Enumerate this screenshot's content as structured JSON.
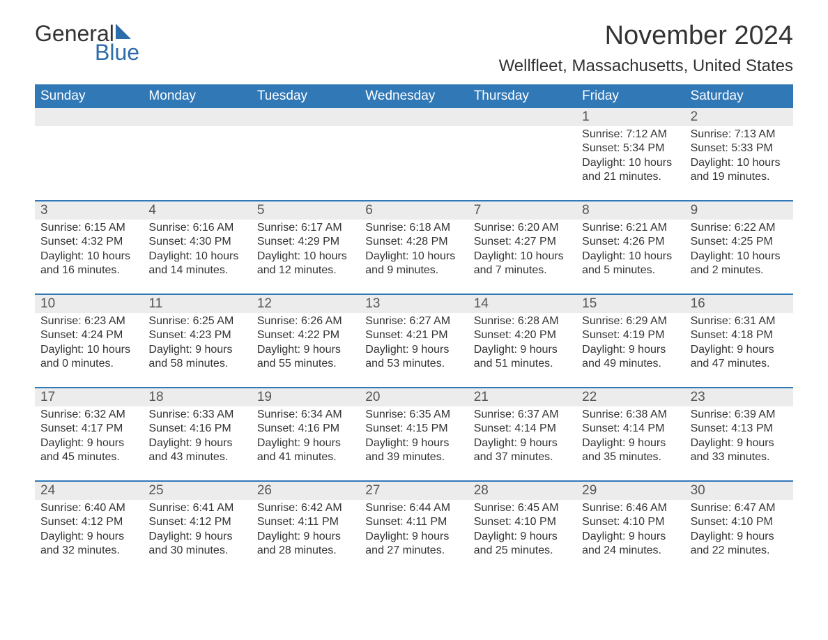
{
  "colors": {
    "header_bg": "#3178b7",
    "header_text": "#ffffff",
    "daynum_bg": "#ececec",
    "rule": "#3178b7",
    "body_text": "#333333",
    "logo_blue": "#2c6ca9",
    "background": "#ffffff"
  },
  "typography": {
    "month_title_size": 38,
    "location_size": 24,
    "weekday_size": 19,
    "daynum_size": 19,
    "detail_size": 16,
    "font_family": "Arial"
  },
  "logo": {
    "word1": "General",
    "word2": "Blue"
  },
  "title": {
    "month": "November 2024",
    "location": "Wellfleet, Massachusetts, United States"
  },
  "weekdays": [
    "Sunday",
    "Monday",
    "Tuesday",
    "Wednesday",
    "Thursday",
    "Friday",
    "Saturday"
  ],
  "weeks": [
    [
      null,
      null,
      null,
      null,
      null,
      {
        "day": "1",
        "sunrise": "Sunrise: 7:12 AM",
        "sunset": "Sunset: 5:34 PM",
        "daylight1": "Daylight: 10 hours",
        "daylight2": "and 21 minutes."
      },
      {
        "day": "2",
        "sunrise": "Sunrise: 7:13 AM",
        "sunset": "Sunset: 5:33 PM",
        "daylight1": "Daylight: 10 hours",
        "daylight2": "and 19 minutes."
      }
    ],
    [
      {
        "day": "3",
        "sunrise": "Sunrise: 6:15 AM",
        "sunset": "Sunset: 4:32 PM",
        "daylight1": "Daylight: 10 hours",
        "daylight2": "and 16 minutes."
      },
      {
        "day": "4",
        "sunrise": "Sunrise: 6:16 AM",
        "sunset": "Sunset: 4:30 PM",
        "daylight1": "Daylight: 10 hours",
        "daylight2": "and 14 minutes."
      },
      {
        "day": "5",
        "sunrise": "Sunrise: 6:17 AM",
        "sunset": "Sunset: 4:29 PM",
        "daylight1": "Daylight: 10 hours",
        "daylight2": "and 12 minutes."
      },
      {
        "day": "6",
        "sunrise": "Sunrise: 6:18 AM",
        "sunset": "Sunset: 4:28 PM",
        "daylight1": "Daylight: 10 hours",
        "daylight2": "and 9 minutes."
      },
      {
        "day": "7",
        "sunrise": "Sunrise: 6:20 AM",
        "sunset": "Sunset: 4:27 PM",
        "daylight1": "Daylight: 10 hours",
        "daylight2": "and 7 minutes."
      },
      {
        "day": "8",
        "sunrise": "Sunrise: 6:21 AM",
        "sunset": "Sunset: 4:26 PM",
        "daylight1": "Daylight: 10 hours",
        "daylight2": "and 5 minutes."
      },
      {
        "day": "9",
        "sunrise": "Sunrise: 6:22 AM",
        "sunset": "Sunset: 4:25 PM",
        "daylight1": "Daylight: 10 hours",
        "daylight2": "and 2 minutes."
      }
    ],
    [
      {
        "day": "10",
        "sunrise": "Sunrise: 6:23 AM",
        "sunset": "Sunset: 4:24 PM",
        "daylight1": "Daylight: 10 hours",
        "daylight2": "and 0 minutes."
      },
      {
        "day": "11",
        "sunrise": "Sunrise: 6:25 AM",
        "sunset": "Sunset: 4:23 PM",
        "daylight1": "Daylight: 9 hours",
        "daylight2": "and 58 minutes."
      },
      {
        "day": "12",
        "sunrise": "Sunrise: 6:26 AM",
        "sunset": "Sunset: 4:22 PM",
        "daylight1": "Daylight: 9 hours",
        "daylight2": "and 55 minutes."
      },
      {
        "day": "13",
        "sunrise": "Sunrise: 6:27 AM",
        "sunset": "Sunset: 4:21 PM",
        "daylight1": "Daylight: 9 hours",
        "daylight2": "and 53 minutes."
      },
      {
        "day": "14",
        "sunrise": "Sunrise: 6:28 AM",
        "sunset": "Sunset: 4:20 PM",
        "daylight1": "Daylight: 9 hours",
        "daylight2": "and 51 minutes."
      },
      {
        "day": "15",
        "sunrise": "Sunrise: 6:29 AM",
        "sunset": "Sunset: 4:19 PM",
        "daylight1": "Daylight: 9 hours",
        "daylight2": "and 49 minutes."
      },
      {
        "day": "16",
        "sunrise": "Sunrise: 6:31 AM",
        "sunset": "Sunset: 4:18 PM",
        "daylight1": "Daylight: 9 hours",
        "daylight2": "and 47 minutes."
      }
    ],
    [
      {
        "day": "17",
        "sunrise": "Sunrise: 6:32 AM",
        "sunset": "Sunset: 4:17 PM",
        "daylight1": "Daylight: 9 hours",
        "daylight2": "and 45 minutes."
      },
      {
        "day": "18",
        "sunrise": "Sunrise: 6:33 AM",
        "sunset": "Sunset: 4:16 PM",
        "daylight1": "Daylight: 9 hours",
        "daylight2": "and 43 minutes."
      },
      {
        "day": "19",
        "sunrise": "Sunrise: 6:34 AM",
        "sunset": "Sunset: 4:16 PM",
        "daylight1": "Daylight: 9 hours",
        "daylight2": "and 41 minutes."
      },
      {
        "day": "20",
        "sunrise": "Sunrise: 6:35 AM",
        "sunset": "Sunset: 4:15 PM",
        "daylight1": "Daylight: 9 hours",
        "daylight2": "and 39 minutes."
      },
      {
        "day": "21",
        "sunrise": "Sunrise: 6:37 AM",
        "sunset": "Sunset: 4:14 PM",
        "daylight1": "Daylight: 9 hours",
        "daylight2": "and 37 minutes."
      },
      {
        "day": "22",
        "sunrise": "Sunrise: 6:38 AM",
        "sunset": "Sunset: 4:14 PM",
        "daylight1": "Daylight: 9 hours",
        "daylight2": "and 35 minutes."
      },
      {
        "day": "23",
        "sunrise": "Sunrise: 6:39 AM",
        "sunset": "Sunset: 4:13 PM",
        "daylight1": "Daylight: 9 hours",
        "daylight2": "and 33 minutes."
      }
    ],
    [
      {
        "day": "24",
        "sunrise": "Sunrise: 6:40 AM",
        "sunset": "Sunset: 4:12 PM",
        "daylight1": "Daylight: 9 hours",
        "daylight2": "and 32 minutes."
      },
      {
        "day": "25",
        "sunrise": "Sunrise: 6:41 AM",
        "sunset": "Sunset: 4:12 PM",
        "daylight1": "Daylight: 9 hours",
        "daylight2": "and 30 minutes."
      },
      {
        "day": "26",
        "sunrise": "Sunrise: 6:42 AM",
        "sunset": "Sunset: 4:11 PM",
        "daylight1": "Daylight: 9 hours",
        "daylight2": "and 28 minutes."
      },
      {
        "day": "27",
        "sunrise": "Sunrise: 6:44 AM",
        "sunset": "Sunset: 4:11 PM",
        "daylight1": "Daylight: 9 hours",
        "daylight2": "and 27 minutes."
      },
      {
        "day": "28",
        "sunrise": "Sunrise: 6:45 AM",
        "sunset": "Sunset: 4:10 PM",
        "daylight1": "Daylight: 9 hours",
        "daylight2": "and 25 minutes."
      },
      {
        "day": "29",
        "sunrise": "Sunrise: 6:46 AM",
        "sunset": "Sunset: 4:10 PM",
        "daylight1": "Daylight: 9 hours",
        "daylight2": "and 24 minutes."
      },
      {
        "day": "30",
        "sunrise": "Sunrise: 6:47 AM",
        "sunset": "Sunset: 4:10 PM",
        "daylight1": "Daylight: 9 hours",
        "daylight2": "and 22 minutes."
      }
    ]
  ]
}
